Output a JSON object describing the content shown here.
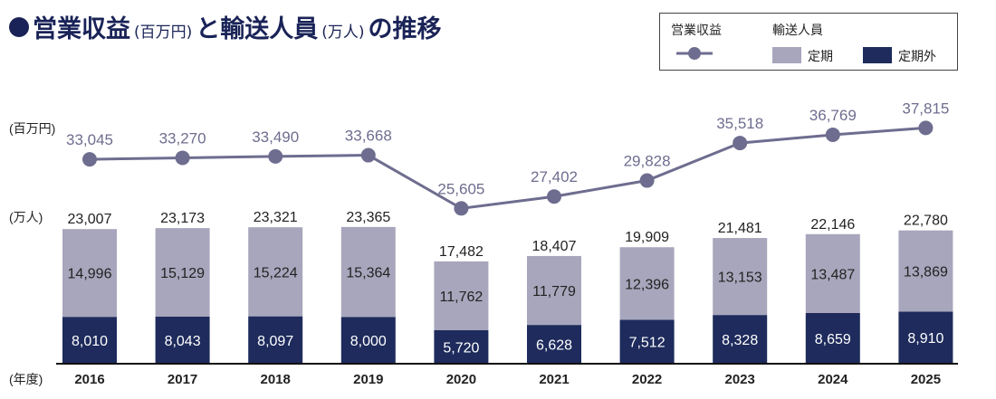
{
  "title": {
    "part1": "営業収益",
    "unit1": "(百万円)",
    "part2": "と輸送人員",
    "unit2": "(万人)",
    "part3": "の推移"
  },
  "legend": {
    "revenue": "営業収益",
    "passengers": "輸送人員",
    "commuter": "定期",
    "non_commuter": "定期外"
  },
  "axis": {
    "revenue_unit": "(百万円)",
    "passenger_unit": "(万人)",
    "year_label": "(年度)"
  },
  "colors": {
    "line": "#6e6d8f",
    "commuter": "#a8a6bc",
    "non_commuter": "#1e2b5c",
    "title": "#1a2357"
  },
  "chart_data": {
    "type": "bar",
    "categories": [
      "2016",
      "2017",
      "2018",
      "2019",
      "2020",
      "2021",
      "2022",
      "2023",
      "2024",
      "2025"
    ],
    "series": [
      {
        "name": "定期外",
        "type": "bar",
        "stack": "passengers",
        "values": [
          8010,
          8043,
          8097,
          8000,
          5720,
          6628,
          7512,
          8328,
          8659,
          8910
        ]
      },
      {
        "name": "定期",
        "type": "bar",
        "stack": "passengers",
        "values": [
          14996,
          15129,
          15224,
          15364,
          11762,
          11779,
          12396,
          13153,
          13487,
          13869
        ]
      },
      {
        "name": "営業収益",
        "type": "line",
        "values": [
          33045,
          33270,
          33490,
          33668,
          25605,
          27402,
          29828,
          35518,
          36769,
          37815
        ]
      }
    ],
    "totals": [
      23007,
      23173,
      23321,
      23365,
      17482,
      18407,
      19909,
      21481,
      22146,
      22780
    ],
    "bar_ylim": [
      0,
      23500
    ],
    "line_ylim": [
      24000,
      38000
    ]
  }
}
